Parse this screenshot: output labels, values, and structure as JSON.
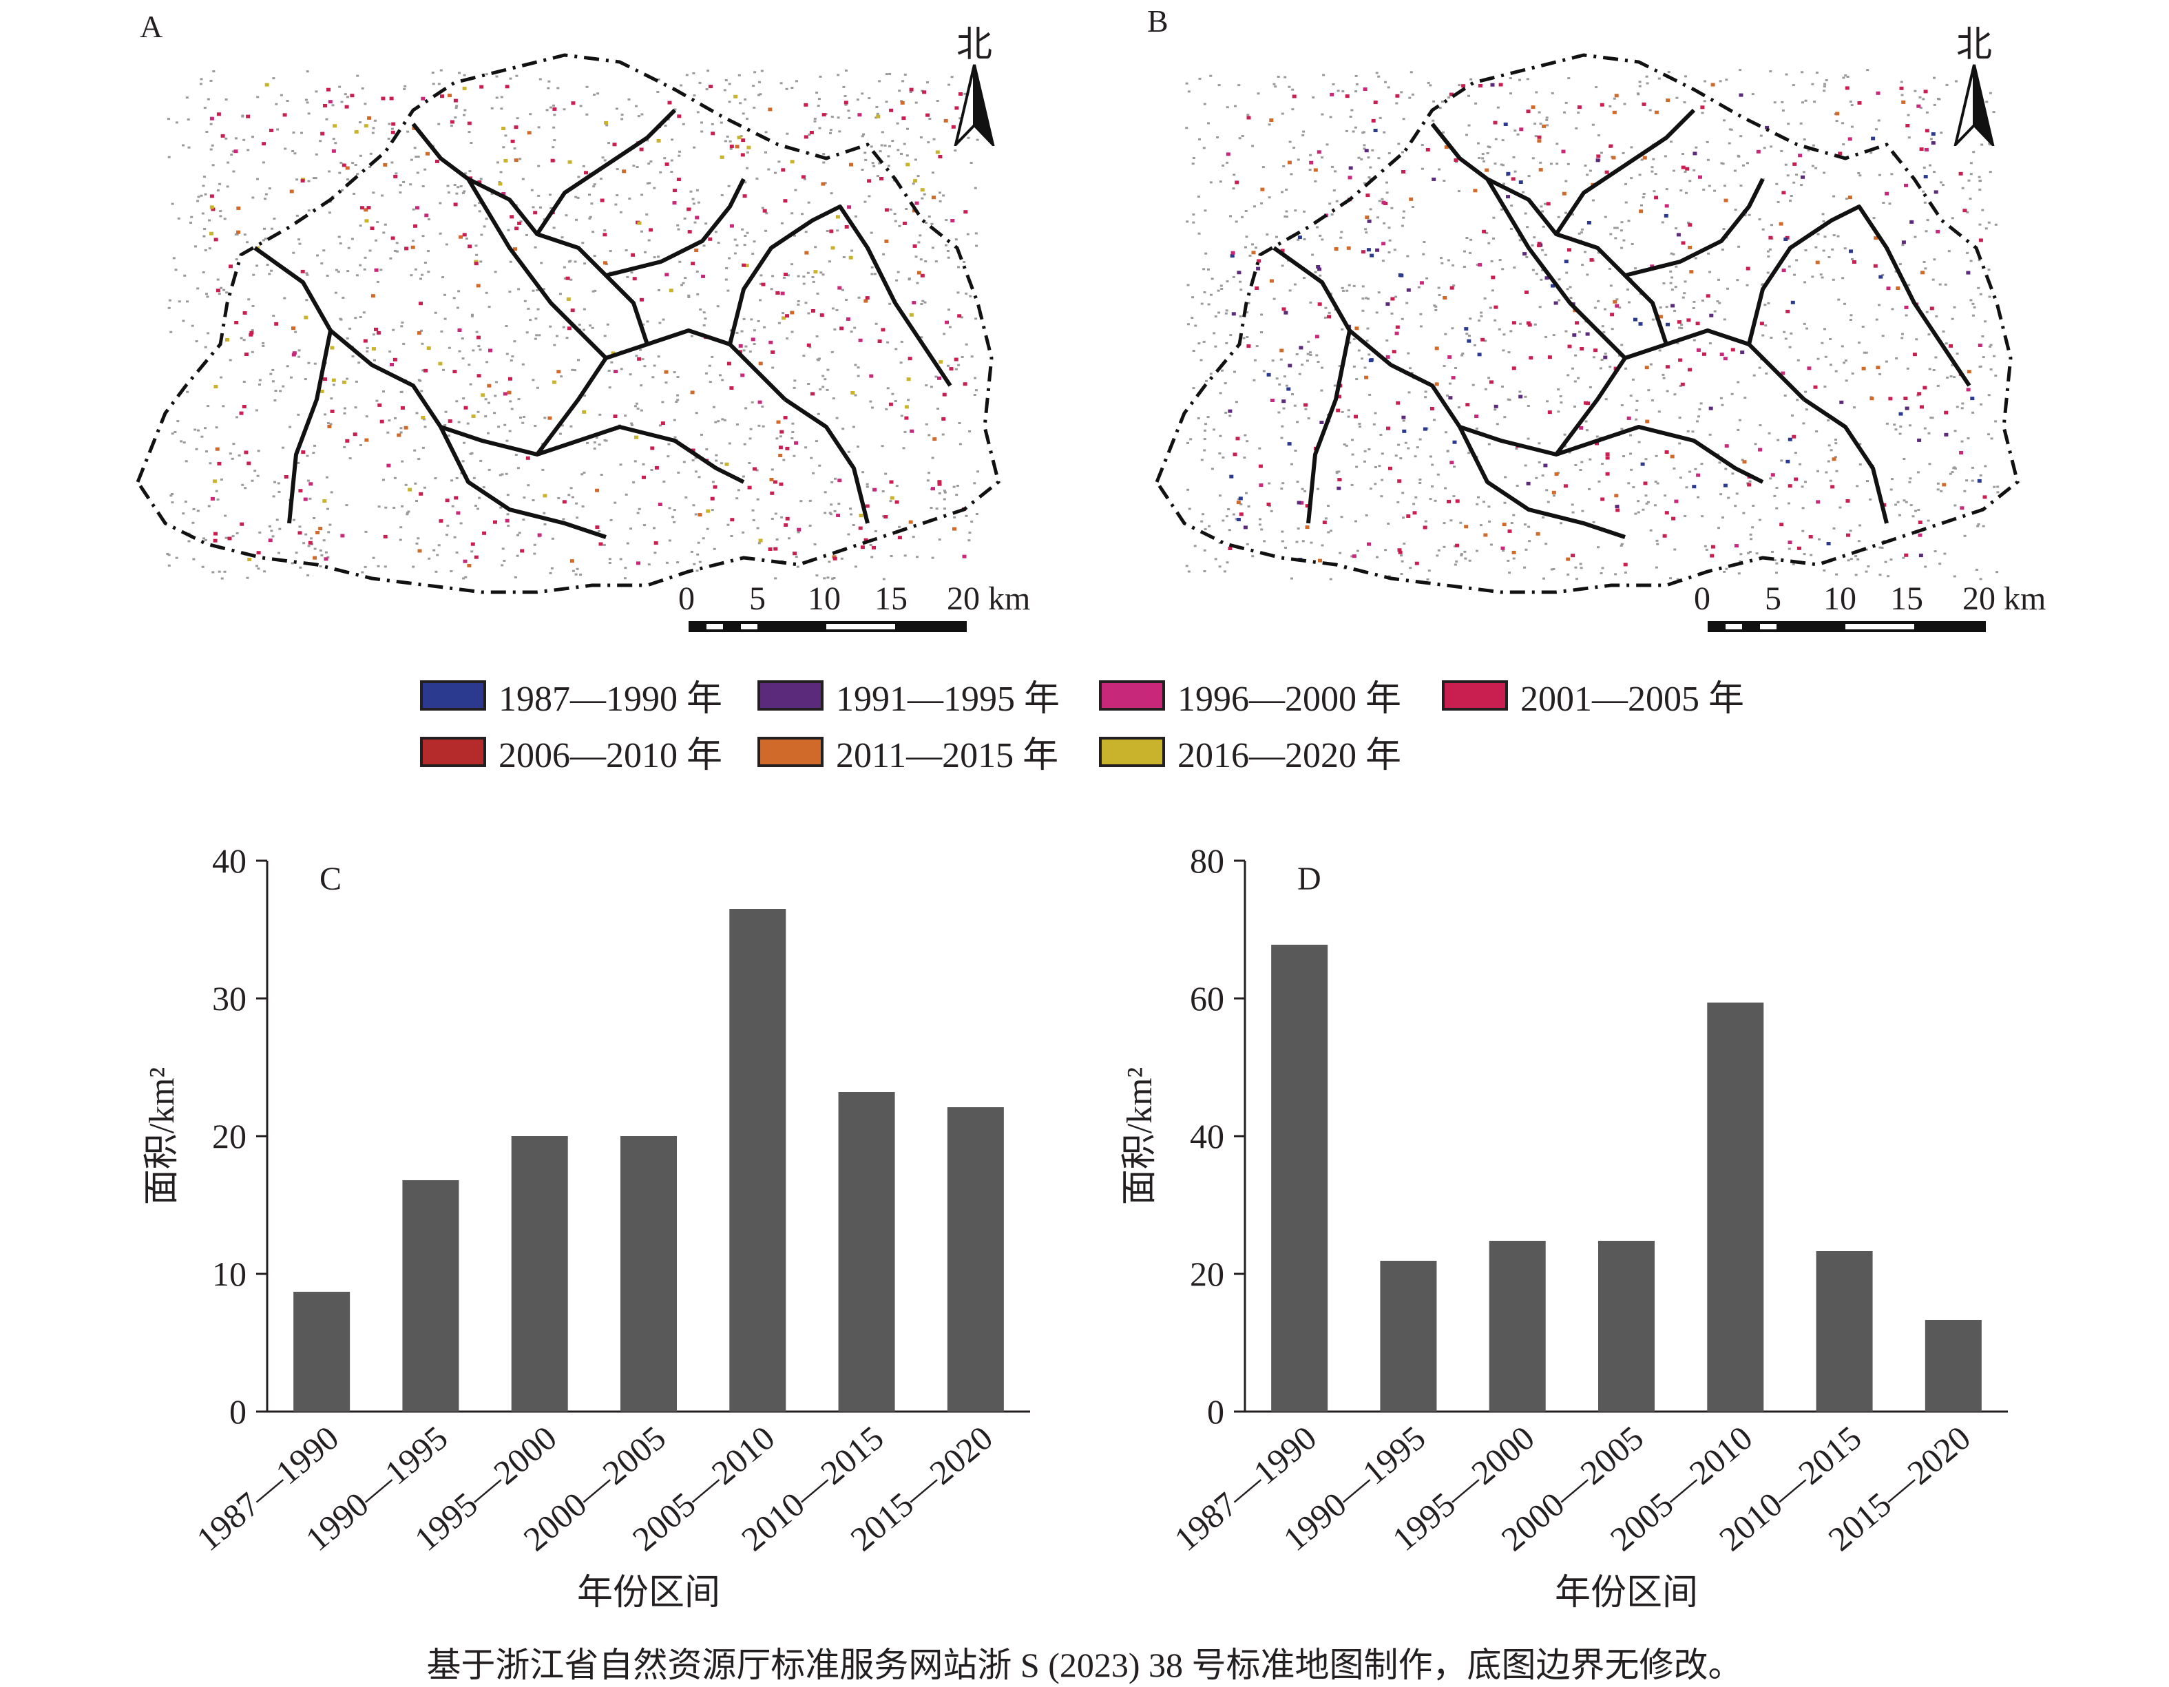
{
  "maps": [
    {
      "letter": "A",
      "north_label": "北",
      "scale_labels": [
        "0",
        "5",
        "10",
        "15",
        "20 km"
      ]
    },
    {
      "letter": "B",
      "north_label": "北",
      "scale_labels": [
        "0",
        "5",
        "10",
        "15",
        "20 km"
      ]
    }
  ],
  "legend": [
    {
      "label": "1987—1990 年",
      "color": "#2b3a8f"
    },
    {
      "label": "1991—1995 年",
      "color": "#5c2a7a"
    },
    {
      "label": "1996—2000 年",
      "color": "#c8287a"
    },
    {
      "label": "2001—2005 年",
      "color": "#c81e50"
    },
    {
      "label": "2006—2010 年",
      "color": "#b52b2b"
    },
    {
      "label": "2011—2015 年",
      "color": "#cf6a2a"
    },
    {
      "label": "2016—2020 年",
      "color": "#c9b22c"
    }
  ],
  "chart_data": [
    {
      "type": "bar",
      "panel_label": "C",
      "categories": [
        "1987—1990",
        "1990—1995",
        "1995—2000",
        "2000—2005",
        "2005—2010",
        "2010—2015",
        "2015—2020"
      ],
      "values": [
        8.7,
        16.8,
        20.0,
        20.0,
        36.5,
        23.2,
        22.1
      ],
      "ylim": [
        0,
        40
      ],
      "yticks": [
        0,
        10,
        20,
        30,
        40
      ],
      "xlabel": "年份区间",
      "ylabel": "面积/km²",
      "bar_color": "#595959"
    },
    {
      "type": "bar",
      "panel_label": "D",
      "categories": [
        "1987—1990",
        "1990—1995",
        "1995—2000",
        "2000—2005",
        "2005—2010",
        "2010—2015",
        "2015—2020"
      ],
      "values": [
        67.8,
        21.9,
        24.8,
        24.8,
        59.4,
        23.3,
        13.3
      ],
      "ylim": [
        0,
        80
      ],
      "yticks": [
        0,
        20,
        40,
        60,
        80
      ],
      "xlabel": "年份区间",
      "ylabel": "面积/km²",
      "bar_color": "#595959"
    }
  ],
  "caption": "基于浙江省自然资源厅标准服务网站浙 S (2023) 38 号标准地图制作，底图边界无修改。"
}
